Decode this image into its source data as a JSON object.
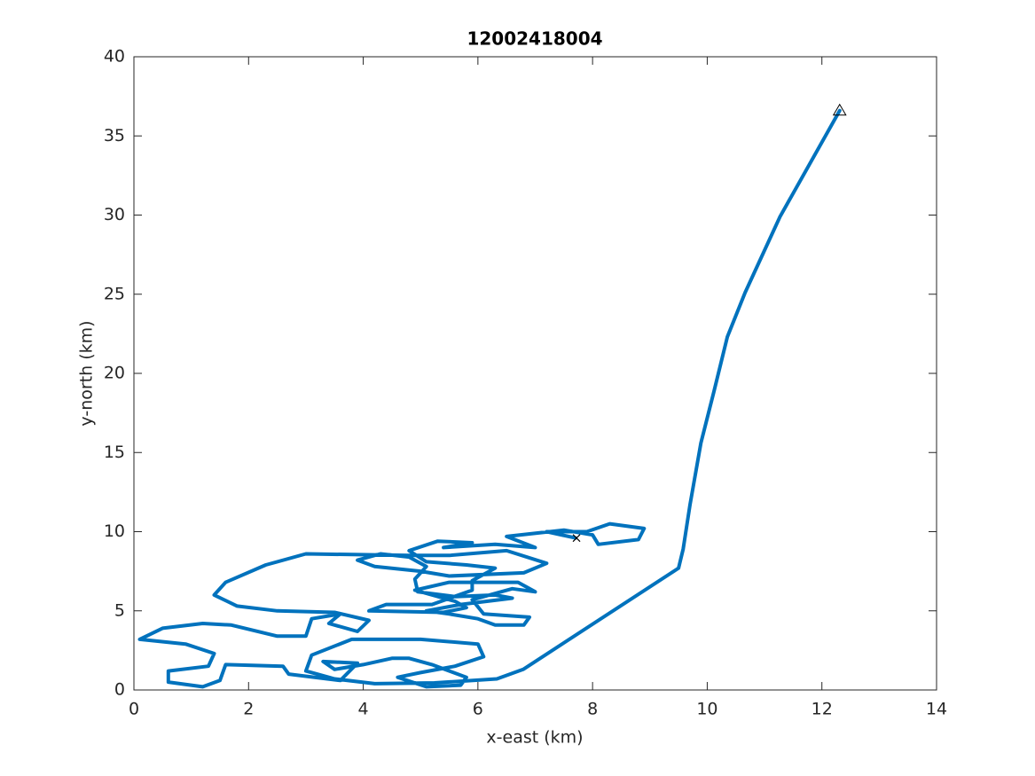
{
  "chart_data": {
    "type": "line",
    "title": "12002418004",
    "xlabel": "x-east (km)",
    "ylabel": "y-north (km)",
    "xlim": [
      0,
      14
    ],
    "ylim": [
      0,
      40
    ],
    "xticks": [
      0,
      2,
      4,
      6,
      8,
      10,
      12,
      14
    ],
    "yticks": [
      0,
      5,
      10,
      15,
      20,
      25,
      30,
      35,
      40
    ],
    "series": [
      {
        "color": "#0072bd",
        "x": [
          12.31,
          11.27,
          10.66,
          10.35,
          10.12,
          9.89,
          9.7,
          9.58,
          9.5,
          6.79,
          6.33,
          5.24,
          4.2,
          3.5,
          3.0,
          3.1,
          3.8,
          5,
          6,
          6.1,
          5.6,
          5.0,
          4.6,
          5.1,
          5.7,
          5.8,
          5.2,
          4.8,
          4.5,
          4.0,
          3.5,
          3.3,
          3.9,
          3.6,
          2.7,
          2.6,
          1.6,
          1.5,
          1.2,
          0.6,
          0.6,
          1.3,
          1.4,
          0.9,
          0.1,
          0.5,
          1.2,
          1.7,
          2.5,
          3.0,
          3.1,
          3.6,
          3.4,
          3.9,
          4.1,
          3.5,
          2.5,
          1.8,
          1.4,
          1.6,
          2.3,
          3.0,
          4.8,
          5.5,
          6.5,
          7.2,
          6.8,
          5.5,
          5.0,
          4.2,
          3.9,
          4.3,
          4.8,
          5.1,
          4.9,
          4.95,
          5.6,
          6.3,
          6.6,
          5.7,
          5.1,
          5.5,
          6.0,
          6.3,
          6.8,
          6.9,
          6.1,
          5.9,
          6.6,
          7.0,
          6.7,
          5.5,
          4.9,
          5.6,
          5.8,
          5.4,
          4.1,
          4.4,
          5.2,
          5.9,
          5.9,
          6.3,
          5.8,
          5.1,
          4.8,
          5.3,
          5.9,
          5.4,
          6.3,
          7.0,
          6.5,
          7.5,
          8.0,
          8.1,
          8.8,
          8.9,
          8.3,
          7.9,
          7.2,
          7.7
        ],
        "y": [
          36.6,
          29.9,
          25.1,
          22.3,
          18.9,
          15.6,
          11.7,
          8.9,
          7.7,
          1.3,
          0.7,
          0.45,
          0.4,
          0.7,
          1.2,
          2.2,
          3.2,
          3.2,
          2.9,
          2.1,
          1.5,
          1.1,
          0.8,
          0.2,
          0.3,
          0.8,
          1.6,
          2.0,
          2.0,
          1.6,
          1.3,
          1.8,
          1.7,
          0.6,
          1.0,
          1.5,
          1.6,
          0.6,
          0.2,
          0.5,
          1.2,
          1.5,
          2.3,
          2.9,
          3.2,
          3.9,
          4.2,
          4.1,
          3.4,
          3.4,
          4.5,
          4.8,
          4.2,
          3.7,
          4.4,
          4.9,
          5.0,
          5.3,
          6.0,
          6.8,
          7.9,
          8.6,
          8.5,
          8.5,
          8.8,
          8.0,
          7.4,
          7.2,
          7.5,
          7.8,
          8.2,
          8.6,
          8.4,
          7.8,
          7.0,
          6.2,
          5.9,
          6.0,
          5.8,
          5.4,
          5.0,
          4.8,
          4.5,
          4.1,
          4.1,
          4.6,
          4.8,
          5.7,
          6.4,
          6.2,
          6.8,
          6.8,
          6.3,
          5.6,
          5.2,
          4.9,
          5.0,
          5.4,
          5.4,
          6.3,
          6.9,
          7.7,
          7.9,
          8.1,
          8.8,
          9.4,
          9.3,
          9.0,
          9.2,
          9.0,
          9.7,
          10.1,
          9.8,
          9.2,
          9.5,
          10.2,
          10.5,
          10.0,
          10.0,
          9.6
        ]
      }
    ],
    "markers": [
      {
        "symbol": "triangle",
        "x": 12.31,
        "y": 36.6
      },
      {
        "symbol": "x",
        "x": 7.72,
        "y": 9.6
      }
    ]
  }
}
